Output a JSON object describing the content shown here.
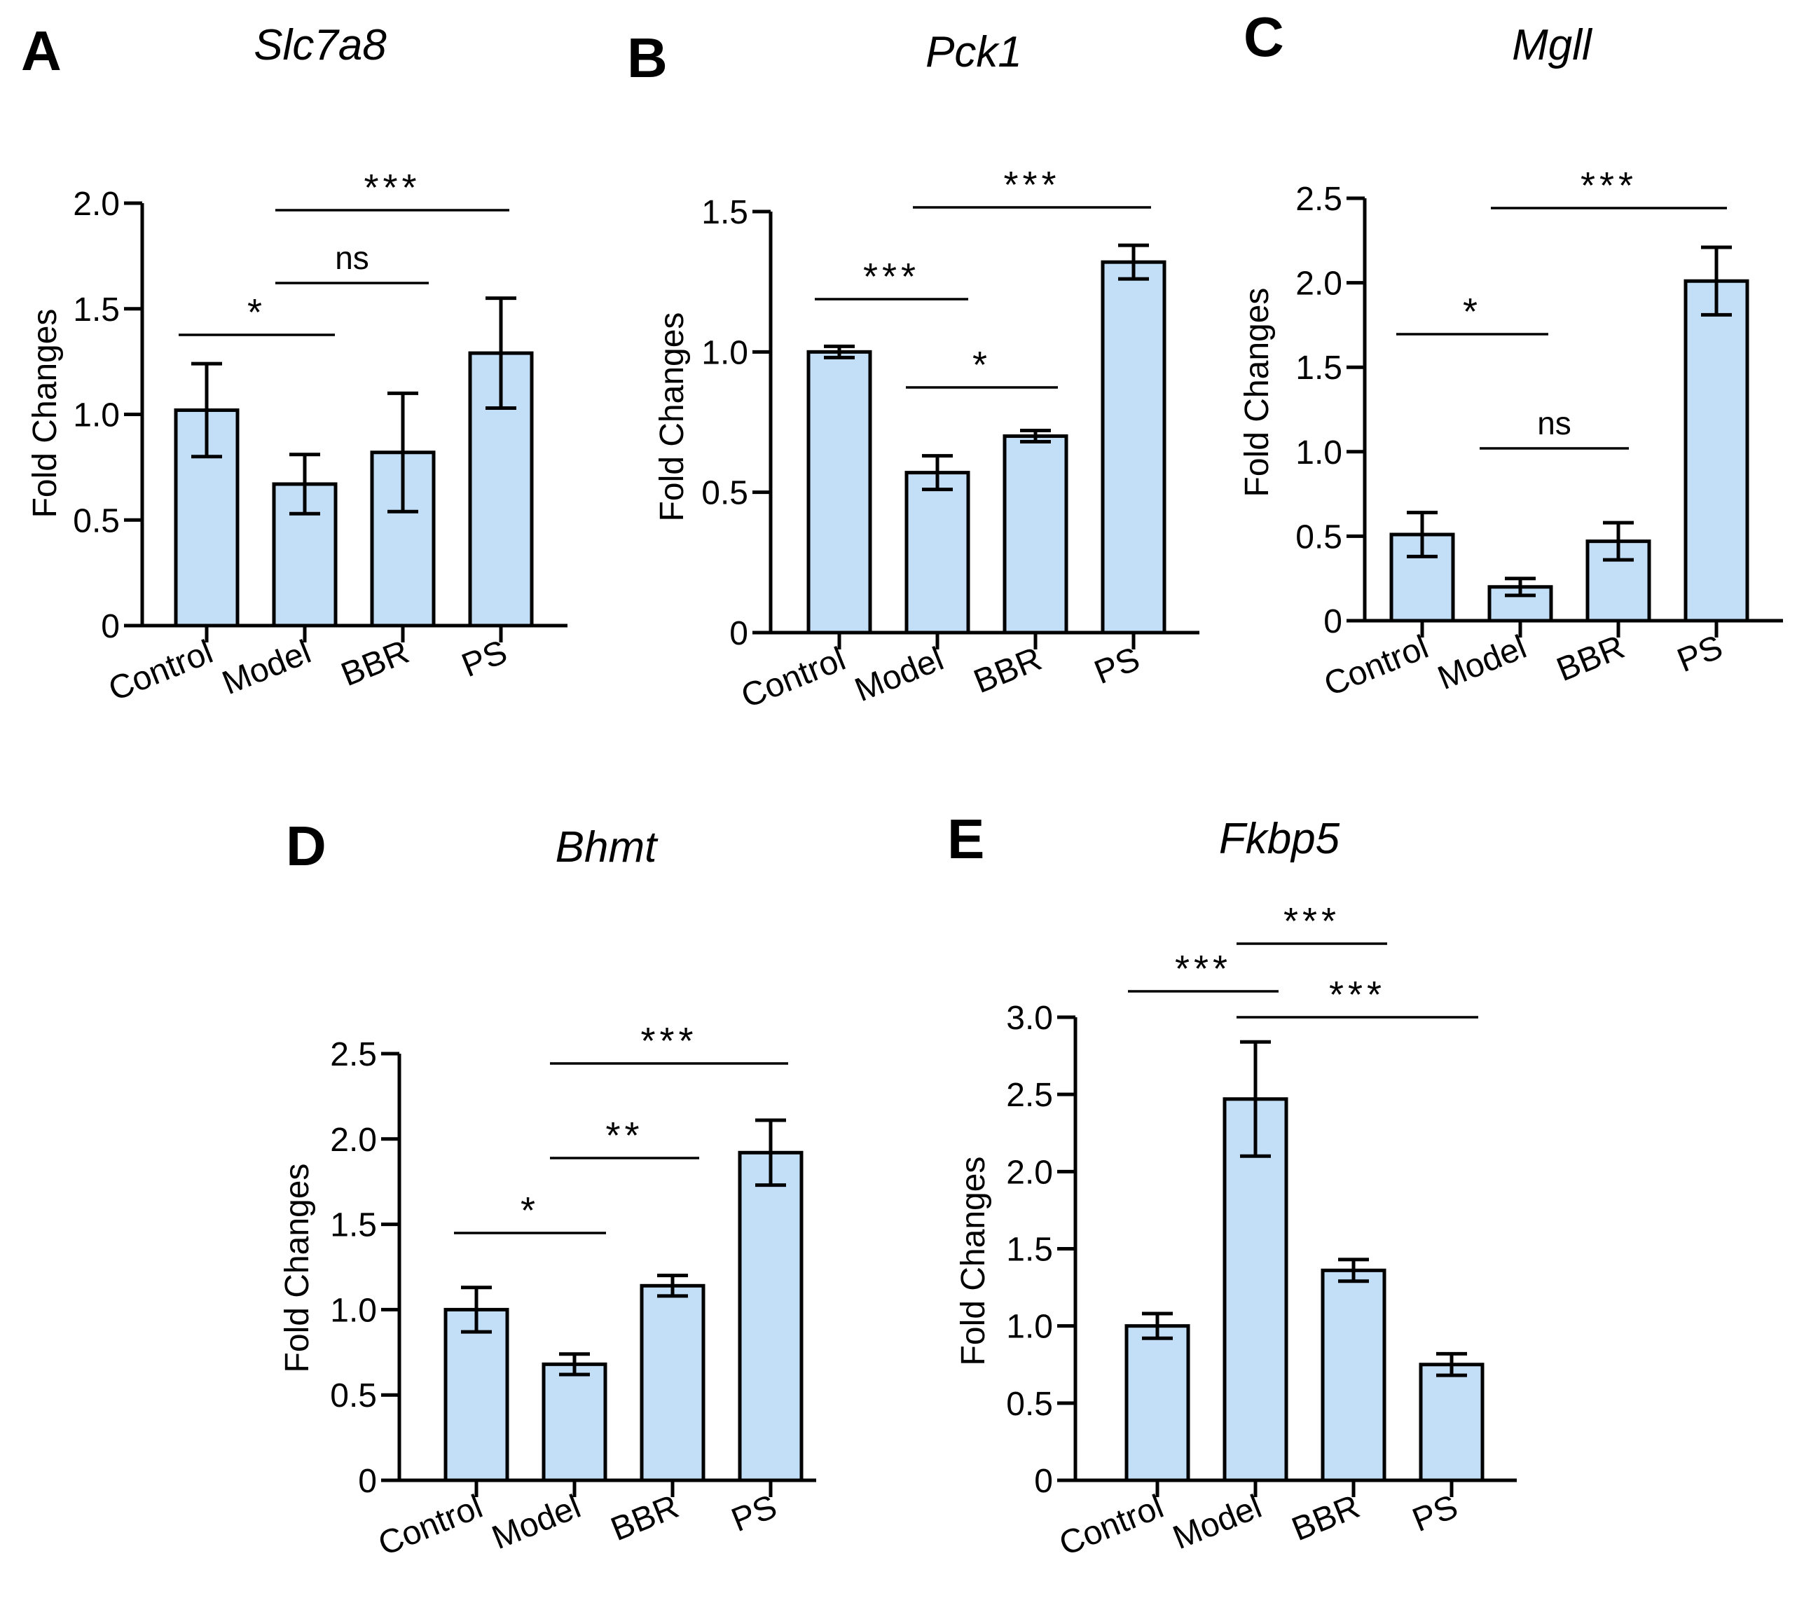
{
  "figure": {
    "bar_fill": "#c3dff7",
    "stroke": "#000000"
  },
  "chart_data": [
    {
      "panel": "A",
      "title": "Slc7a8",
      "type": "bar",
      "ylabel": "Fold Changes",
      "ylim": [
        0,
        2.0
      ],
      "yticks": [
        0,
        0.5,
        1.0,
        1.5,
        2.0
      ],
      "ytick_labels": [
        "0",
        "0.5",
        "1.0",
        "1.5",
        "2.0"
      ],
      "categories": [
        "Control",
        "Model",
        "BBR",
        "PS"
      ],
      "values": [
        1.02,
        0.67,
        0.82,
        1.29
      ],
      "errors": [
        0.22,
        0.14,
        0.28,
        0.26
      ],
      "significance": [
        {
          "from": "Control",
          "to": "Model",
          "label": "*"
        },
        {
          "from": "Model",
          "to": "BBR",
          "label": "ns"
        },
        {
          "from": "Model",
          "to": "PS",
          "label": "***"
        }
      ]
    },
    {
      "panel": "B",
      "title": "Pck1",
      "type": "bar",
      "ylabel": "Fold Changes",
      "ylim": [
        0,
        1.5
      ],
      "yticks": [
        0,
        0.5,
        1.0,
        1.5
      ],
      "ytick_labels": [
        "0",
        "0.5",
        "1.0",
        "1.5"
      ],
      "categories": [
        "Control",
        "Model",
        "BBR",
        "PS"
      ],
      "values": [
        1.0,
        0.57,
        0.7,
        1.32
      ],
      "errors": [
        0.02,
        0.06,
        0.02,
        0.06
      ],
      "significance": [
        {
          "from": "Control",
          "to": "Model",
          "label": "***"
        },
        {
          "from": "Model",
          "to": "BBR",
          "label": "*"
        },
        {
          "from": "Model",
          "to": "PS",
          "label": "***"
        }
      ]
    },
    {
      "panel": "C",
      "title": "Mgll",
      "type": "bar",
      "ylabel": "Fold Changes",
      "ylim": [
        0,
        2.5
      ],
      "yticks": [
        0,
        0.5,
        1.0,
        1.5,
        2.0,
        2.5
      ],
      "ytick_labels": [
        "0",
        "0.5",
        "1.0",
        "1.5",
        "2.0",
        "2.5"
      ],
      "categories": [
        "Control",
        "Model",
        "BBR",
        "PS"
      ],
      "values": [
        0.51,
        0.2,
        0.47,
        2.01
      ],
      "errors": [
        0.13,
        0.05,
        0.11,
        0.2
      ],
      "significance": [
        {
          "from": "Control",
          "to": "Model",
          "label": "*"
        },
        {
          "from": "Model",
          "to": "BBR",
          "label": "ns"
        },
        {
          "from": "Model",
          "to": "PS",
          "label": "***"
        }
      ]
    },
    {
      "panel": "D",
      "title": "Bhmt",
      "type": "bar",
      "ylabel": "Fold Changes",
      "ylim": [
        0,
        2.5
      ],
      "yticks": [
        0,
        0.5,
        1.0,
        1.5,
        2.0,
        2.5
      ],
      "ytick_labels": [
        "0",
        "0.5",
        "1.0",
        "1.5",
        "2.0",
        "2.5"
      ],
      "categories": [
        "Control",
        "Model",
        "BBR",
        "PS"
      ],
      "values": [
        1.0,
        0.68,
        1.14,
        1.92
      ],
      "errors": [
        0.13,
        0.06,
        0.06,
        0.19
      ],
      "significance": [
        {
          "from": "Control",
          "to": "Model",
          "label": "*"
        },
        {
          "from": "Model",
          "to": "BBR",
          "label": "**"
        },
        {
          "from": "Model",
          "to": "PS",
          "label": "***"
        }
      ]
    },
    {
      "panel": "E",
      "title": "Fkbp5",
      "type": "bar",
      "ylabel": "Fold Changes",
      "ylim": [
        0,
        3.0
      ],
      "yticks": [
        0,
        0.5,
        1.0,
        1.5,
        2.0,
        2.5,
        3.0
      ],
      "ytick_labels": [
        "0",
        "0.5",
        "1.0",
        "1.5",
        "2.0",
        "2.5",
        "3.0"
      ],
      "categories": [
        "Control",
        "Model",
        "BBR",
        "PS"
      ],
      "values": [
        1.0,
        2.47,
        1.36,
        0.75
      ],
      "errors": [
        0.08,
        0.37,
        0.07,
        0.07
      ],
      "significance": [
        {
          "from": "Control",
          "to": "Model",
          "label": "***"
        },
        {
          "from": "Model",
          "to": "BBR",
          "label": "***"
        },
        {
          "from": "Model",
          "to": "PS",
          "label": "***"
        }
      ]
    }
  ]
}
